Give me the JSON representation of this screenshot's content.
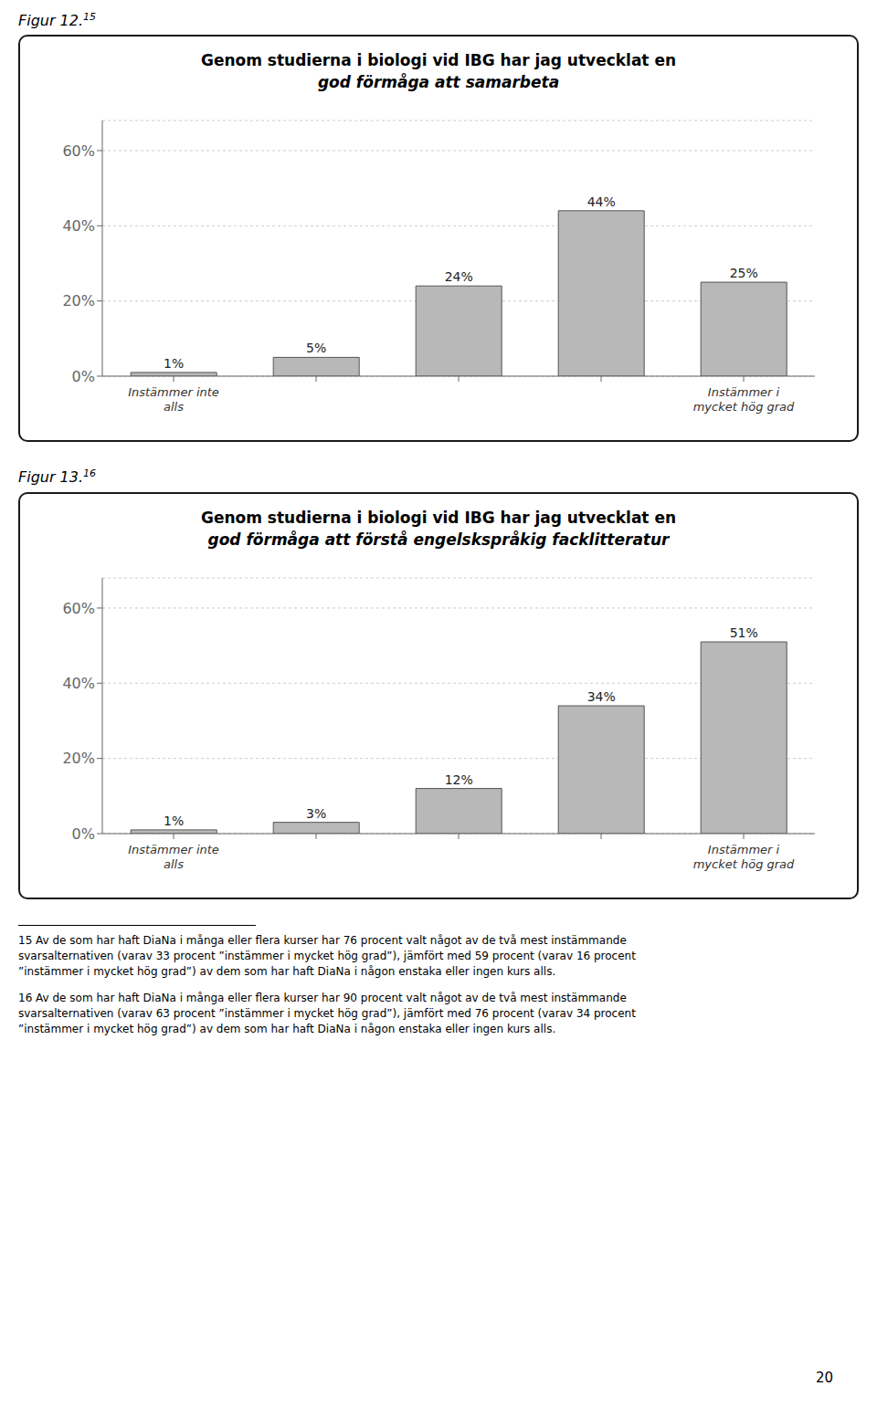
{
  "chart_data": [
    {
      "type": "bar",
      "title": "Genom studierna i biologi vid IBG har jag utvecklat en",
      "subtitle": "god förmåga att samarbeta",
      "annotations": [
        "Figur 12.",
        "15"
      ],
      "categories": [
        "Instämmer inte\nalls",
        null,
        null,
        null,
        "Instämmer i\nmycket hög grad"
      ],
      "values": [
        1,
        5,
        24,
        44,
        25
      ],
      "value_labels": [
        "1%",
        "5%",
        "24%",
        "44%",
        "25%"
      ],
      "data_labels": true,
      "color": "#b8b8b8",
      "ylim": [
        0,
        68
      ],
      "yticks": [
        {
          "value": 0,
          "label": "0%"
        },
        {
          "value": 20,
          "label": "20%"
        },
        {
          "value": 40,
          "label": "40%"
        },
        {
          "value": 60,
          "label": "60%"
        }
      ],
      "grid": true
    },
    {
      "type": "bar",
      "title": "Genom studierna i biologi vid IBG har jag utvecklat en",
      "subtitle": "god förmåga att förstå engelskspråkig facklitteratur",
      "annotations": [
        "Figur 13.",
        "16"
      ],
      "categories": [
        "Instämmer inte\nalls",
        null,
        null,
        null,
        "Instämmer i\nmycket hög grad"
      ],
      "values": [
        1,
        3,
        12,
        34,
        51
      ],
      "value_labels": [
        "1%",
        "3%",
        "12%",
        "34%",
        "51%"
      ],
      "data_labels": true,
      "color": "#b8b8b8",
      "ylim": [
        0,
        68
      ],
      "yticks": [
        {
          "value": 0,
          "label": "0%"
        },
        {
          "value": 20,
          "label": "20%"
        },
        {
          "value": 40,
          "label": "40%"
        },
        {
          "value": 60,
          "label": "60%"
        }
      ],
      "grid": true
    }
  ],
  "annotations": [
    "15 Av de som har haft DiaNa i många eller flera kurser har 76 procent valt något av de två mest instämmande\nsvarsalternativen (varav 33 procent ”instämmer i mycket hög grad”), jämfört med 59 procent (varav 16 procent\n”instämmer i mycket hög grad”) av dem som har haft DiaNa i någon enstaka eller ingen kurs alls.",
    "16 Av de som har haft DiaNa i många eller flera kurser har 90 procent valt något av de två mest instämmande\nsvarsalternativen (varav 63 procent ”instämmer i mycket hög grad”), jämfört med 76 procent (varav 34 procent\n”instämmer i mycket hög grad”) av dem som har haft DiaNa i någon enstaka eller ingen kurs alls.",
    "20"
  ]
}
